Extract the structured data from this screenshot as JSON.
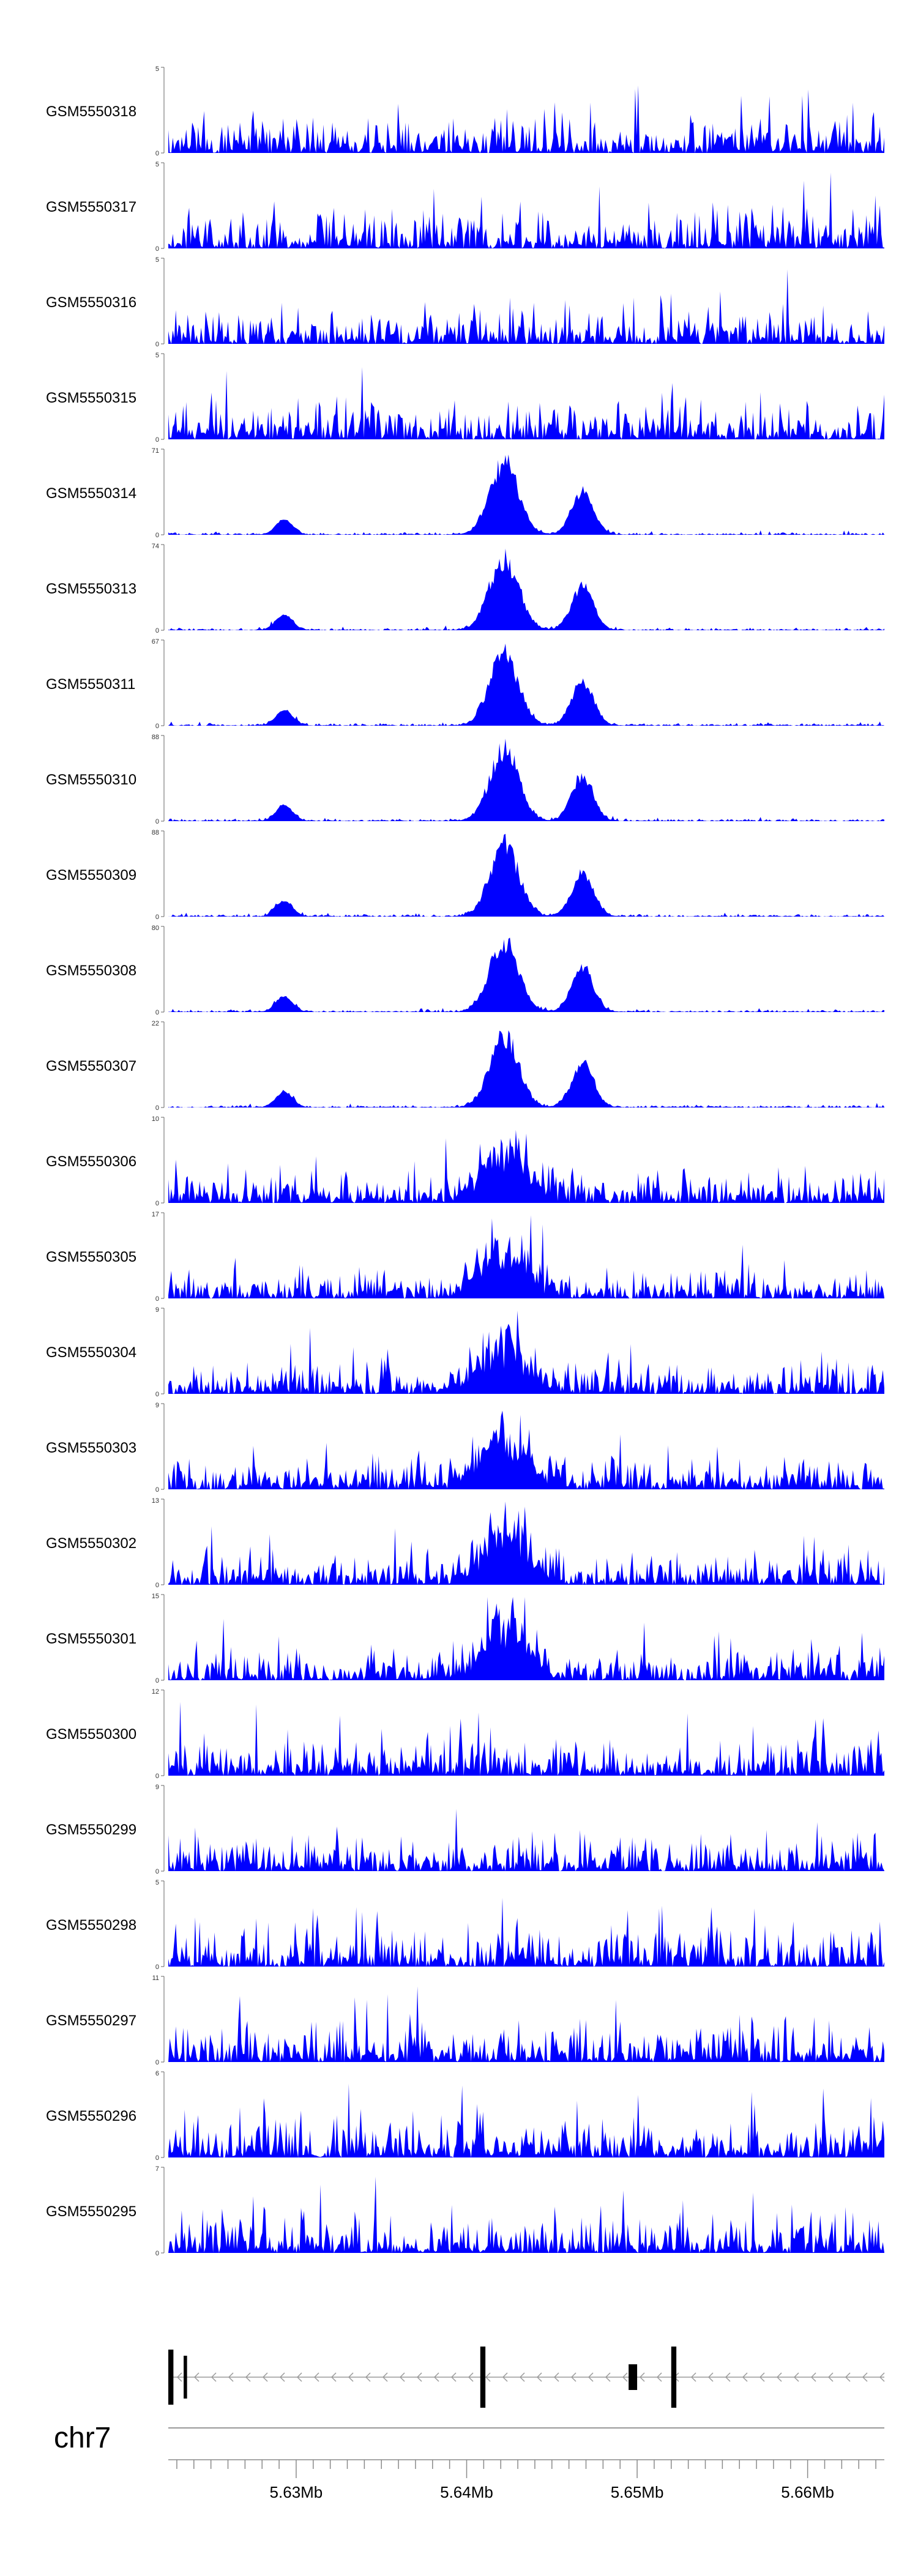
{
  "chart_data": {
    "type": "area",
    "title": "",
    "chromosome": "chr7",
    "x_range_mb": [
      5.6225,
      5.6645
    ],
    "x_ticks": [
      "5.63Mb",
      "5.64Mb",
      "5.65Mb",
      "5.66Mb"
    ],
    "x_tick_values": [
      5.63,
      5.64,
      5.65,
      5.66
    ],
    "fill_color": "#0000ff",
    "tracks": [
      {
        "name": "GSM5550318",
        "ymax": "5"
      },
      {
        "name": "GSM5550317",
        "ymax": "5"
      },
      {
        "name": "GSM5550316",
        "ymax": "5"
      },
      {
        "name": "GSM5550315",
        "ymax": "5"
      },
      {
        "name": "GSM5550314",
        "ymax": "71"
      },
      {
        "name": "GSM5550313",
        "ymax": "74"
      },
      {
        "name": "GSM5550311",
        "ymax": "67"
      },
      {
        "name": "GSM5550310",
        "ymax": "88"
      },
      {
        "name": "GSM5550309",
        "ymax": "88"
      },
      {
        "name": "GSM5550308",
        "ymax": "80"
      },
      {
        "name": "GSM5550307",
        "ymax": "22"
      },
      {
        "name": "GSM5550306",
        "ymax": "10"
      },
      {
        "name": "GSM5550305",
        "ymax": "17"
      },
      {
        "name": "GSM5550304",
        "ymax": "9"
      },
      {
        "name": "GSM5550303",
        "ymax": "9"
      },
      {
        "name": "GSM5550302",
        "ymax": "13"
      },
      {
        "name": "GSM5550301",
        "ymax": "15"
      },
      {
        "name": "GSM5550300",
        "ymax": "12"
      },
      {
        "name": "GSM5550299",
        "ymax": "9"
      },
      {
        "name": "GSM5550298",
        "ymax": "5"
      },
      {
        "name": "GSM5550297",
        "ymax": "11"
      },
      {
        "name": "GSM5550296",
        "ymax": "6"
      },
      {
        "name": "GSM5550295",
        "ymax": "7"
      }
    ],
    "ymin_label": "0",
    "gene_strand": "minus"
  }
}
